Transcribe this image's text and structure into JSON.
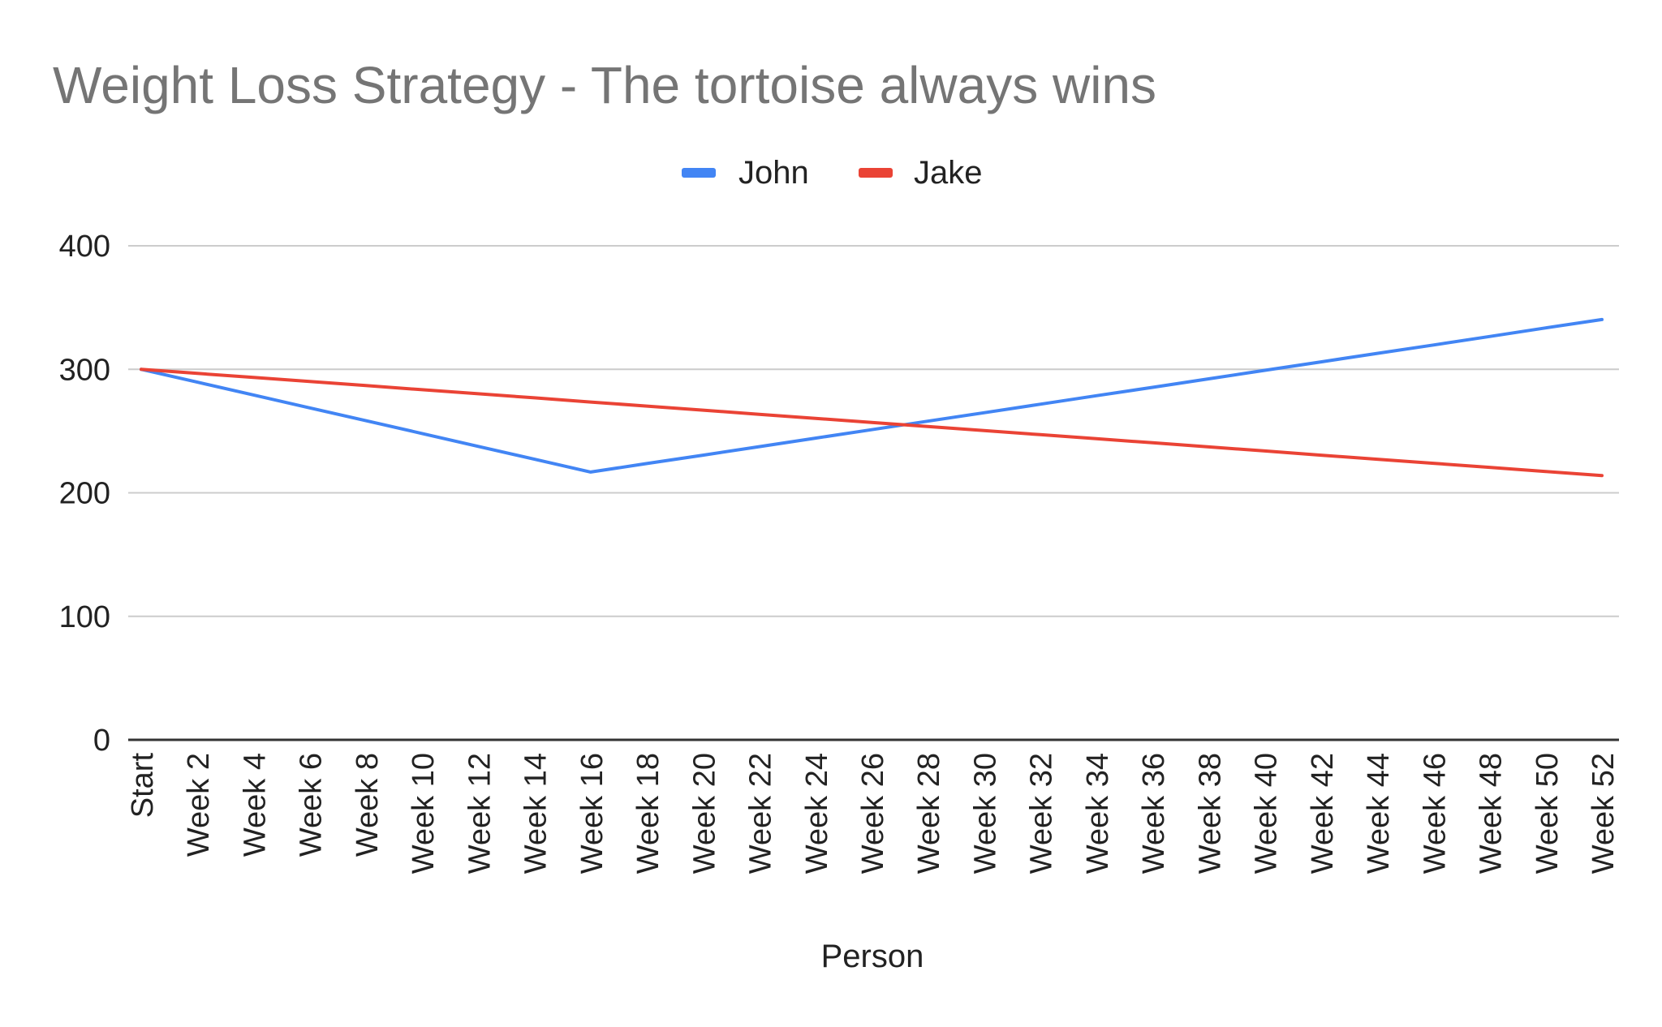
{
  "chart_data": {
    "type": "line",
    "title": "Weight Loss Strategy - The tortoise always wins",
    "xlabel": "Person",
    "ylabel": "",
    "ylim": [
      0,
      400
    ],
    "yticks": [
      "0",
      "100",
      "200",
      "300",
      "400"
    ],
    "grid": true,
    "legend_position": "top-center",
    "categories": [
      "Start",
      "Week 2",
      "Week 4",
      "Week 6",
      "Week 8",
      "Week 10",
      "Week 12",
      "Week 14",
      "Week 16",
      "Week 18",
      "Week 20",
      "Week 22",
      "Week 24",
      "Week 26",
      "Week 28",
      "Week 30",
      "Week 32",
      "Week 34",
      "Week 36",
      "Week 38",
      "Week 40",
      "Week 42",
      "Week 44",
      "Week 46",
      "Week 48",
      "Week 50",
      "Week 52"
    ],
    "series": [
      {
        "name": "John",
        "color": "#4285F4",
        "values": [
          300,
          289.6,
          279.2,
          268.8,
          258.4,
          248,
          237.6,
          227.2,
          216.8,
          223.7,
          230.5,
          237.4,
          244.3,
          251.1,
          258,
          264.8,
          271.7,
          278.6,
          285.4,
          292.3,
          299.2,
          306,
          312.9,
          319.7,
          326.6,
          333.5,
          340.3
        ]
      },
      {
        "name": "Jake",
        "color": "#EA4335",
        "values": [
          300,
          296.7,
          293.4,
          290.1,
          286.8,
          283.5,
          280.2,
          276.9,
          273.5,
          270.2,
          266.9,
          263.6,
          260.3,
          257,
          253.7,
          250.4,
          247.1,
          243.8,
          240.5,
          237.2,
          233.9,
          230.5,
          227.2,
          223.9,
          220.6,
          217.3,
          214
        ]
      }
    ]
  }
}
